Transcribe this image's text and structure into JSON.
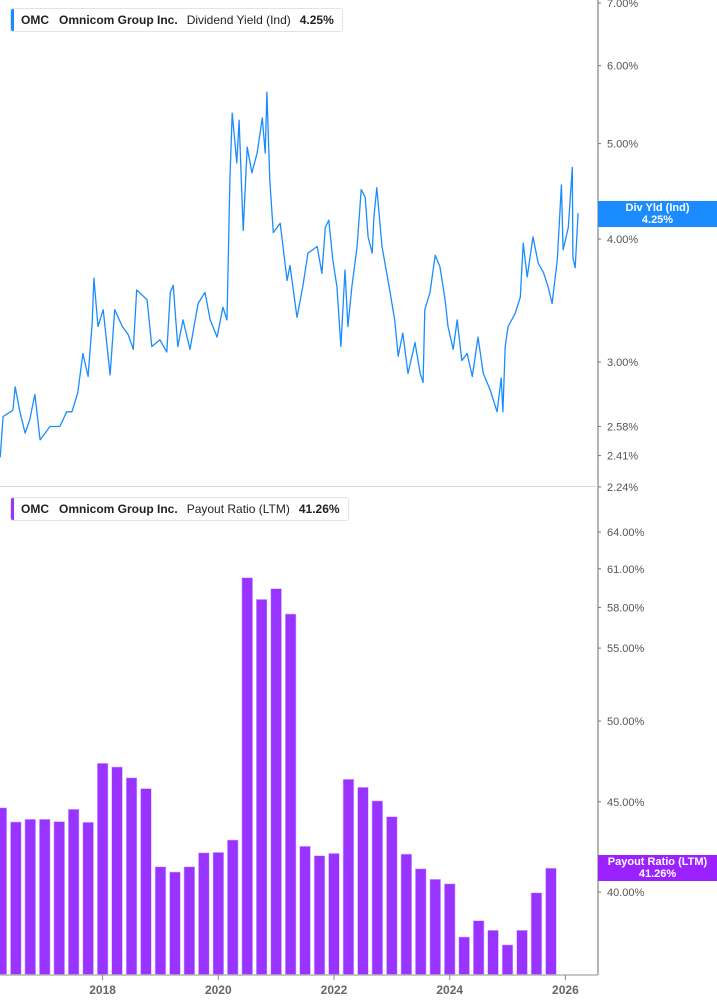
{
  "colors": {
    "dividend_line": "#1a8cff",
    "payout_bars": "#9933ff",
    "axis": "#b5b5b5",
    "tick_text": "#555555"
  },
  "top_legend": {
    "ticker": "OMC",
    "company": "Omnicom Group Inc.",
    "metric": "Dividend Yield (Ind)",
    "value": "4.25%"
  },
  "top_badge": {
    "label": "Div Yld (Ind)",
    "value": "4.25%"
  },
  "bottom_legend": {
    "ticker": "OMC",
    "company": "Omnicom Group Inc.",
    "metric": "Payout Ratio (LTM)",
    "value": "41.26%"
  },
  "bottom_badge": {
    "label": "Payout Ratio (LTM)",
    "value": "41.26%"
  },
  "chart_data": [
    {
      "type": "line",
      "series": [
        {
          "name": "Dividend Yield (Ind)"
        }
      ],
      "y_scale": "log",
      "ylim": [
        2.24,
        7.0
      ],
      "y_ticks": [
        "7.00%",
        "6.00%",
        "5.00%",
        "4.00%",
        "3.00%",
        "2.58%",
        "2.41%",
        "2.24%"
      ],
      "y_tick_values": [
        7.0,
        6.0,
        5.0,
        4.0,
        3.0,
        2.58,
        2.41,
        2.24
      ],
      "x": [
        2016.23,
        2016.28,
        2016.45,
        2016.49,
        2016.57,
        2016.66,
        2016.74,
        2016.83,
        2016.92,
        2017.09,
        2017.26,
        2017.38,
        2017.47,
        2017.57,
        2017.66,
        2017.75,
        2017.82,
        2017.85,
        2017.92,
        2018.01,
        2018.13,
        2018.21,
        2018.34,
        2018.44,
        2018.53,
        2018.59,
        2018.77,
        2018.85,
        2018.99,
        2019.11,
        2019.17,
        2019.22,
        2019.3,
        2019.39,
        2019.51,
        2019.65,
        2019.77,
        2019.86,
        2019.98,
        2020.08,
        2020.15,
        2020.2,
        2020.24,
        2020.32,
        2020.36,
        2020.43,
        2020.5,
        2020.58,
        2020.67,
        2020.76,
        2020.81,
        2020.84,
        2020.89,
        2020.95,
        2021.07,
        2021.19,
        2021.24,
        2021.36,
        2021.46,
        2021.55,
        2021.71,
        2021.79,
        2021.85,
        2021.91,
        2021.98,
        2022.05,
        2022.12,
        2022.19,
        2022.24,
        2022.31,
        2022.4,
        2022.47,
        2022.54,
        2022.59,
        2022.66,
        2022.69,
        2022.74,
        2022.83,
        2022.97,
        2023.05,
        2023.11,
        2023.19,
        2023.28,
        2023.4,
        2023.49,
        2023.54,
        2023.57,
        2023.66,
        2023.75,
        2023.83,
        2023.92,
        2023.97,
        2024.06,
        2024.13,
        2024.21,
        2024.3,
        2024.39,
        2024.49,
        2024.58,
        2024.7,
        2024.82,
        2024.89,
        2024.92,
        2024.96,
        2025.01,
        2025.13,
        2025.22,
        2025.27,
        2025.34,
        2025.44,
        2025.53,
        2025.62,
        2025.7,
        2025.77,
        2025.86,
        2025.93,
        2025.96,
        2026.05,
        2026.12,
        2026.13,
        2026.17,
        2026.22
      ],
      "values": [
        2.4,
        2.64,
        2.68,
        2.83,
        2.67,
        2.54,
        2.62,
        2.78,
        2.5,
        2.58,
        2.58,
        2.67,
        2.67,
        2.79,
        3.06,
        2.9,
        3.29,
        3.65,
        3.26,
        3.39,
        2.91,
        3.39,
        3.26,
        3.2,
        3.09,
        3.55,
        3.47,
        3.11,
        3.16,
        3.07,
        3.53,
        3.59,
        3.11,
        3.31,
        3.09,
        3.44,
        3.53,
        3.31,
        3.18,
        3.41,
        3.31,
        4.59,
        5.37,
        4.78,
        5.28,
        4.08,
        4.96,
        4.67,
        4.89,
        5.31,
        4.89,
        5.64,
        4.59,
        4.06,
        4.15,
        3.63,
        3.76,
        3.33,
        3.58,
        3.87,
        3.93,
        3.69,
        4.11,
        4.18,
        3.81,
        3.58,
        3.11,
        3.72,
        3.26,
        3.58,
        3.93,
        4.49,
        4.41,
        4.02,
        3.87,
        4.21,
        4.51,
        3.93,
        3.53,
        3.31,
        3.04,
        3.21,
        2.92,
        3.14,
        2.92,
        2.86,
        3.39,
        3.53,
        3.85,
        3.75,
        3.47,
        3.26,
        3.09,
        3.31,
        3.01,
        3.06,
        2.9,
        3.18,
        2.92,
        2.81,
        2.67,
        2.89,
        2.67,
        3.11,
        3.26,
        3.36,
        3.49,
        3.96,
        3.66,
        4.02,
        3.78,
        3.7,
        3.58,
        3.44,
        3.81,
        4.54,
        3.9,
        4.11,
        4.73,
        3.83,
        3.74,
        4.25
      ]
    },
    {
      "type": "bar",
      "series": [
        {
          "name": "Payout Ratio (LTM)"
        }
      ],
      "y_scale": "log",
      "y_ticks": [
        "64.00%",
        "61.00%",
        "58.00%",
        "55.00%",
        "50.00%",
        "45.00%",
        "40.00%"
      ],
      "y_tick_values": [
        64,
        61,
        58,
        55,
        50,
        45,
        40
      ],
      "x_ticks": [
        "2018",
        "2020",
        "2022",
        "2024",
        "2026"
      ],
      "x_tick_values": [
        2018,
        2020,
        2022,
        2024,
        2026
      ],
      "x": [
        2016.25,
        2016.5,
        2016.75,
        2017.0,
        2017.25,
        2017.5,
        2017.75,
        2018.0,
        2018.25,
        2018.5,
        2018.75,
        2019.0,
        2019.25,
        2019.5,
        2019.75,
        2020.0,
        2020.25,
        2020.5,
        2020.75,
        2021.0,
        2021.25,
        2021.5,
        2021.75,
        2022.0,
        2022.25,
        2022.5,
        2022.75,
        2023.0,
        2023.25,
        2023.5,
        2023.75,
        2024.0,
        2024.25,
        2024.5,
        2024.75,
        2025.0,
        2025.25,
        2025.5,
        2025.75
      ],
      "values": [
        44.65,
        43.83,
        43.98,
        43.98,
        43.85,
        44.56,
        43.81,
        47.32,
        47.09,
        46.43,
        45.78,
        41.34,
        41.06,
        41.34,
        42.1,
        42.12,
        42.81,
        60.29,
        58.61,
        59.43,
        57.5,
        42.46,
        41.94,
        42.07,
        46.34,
        45.86,
        45.05,
        44.13,
        42.03,
        41.23,
        40.67,
        40.43,
        37.72,
        38.53,
        38.05,
        37.33,
        38.05,
        39.96,
        41.26
      ]
    }
  ]
}
